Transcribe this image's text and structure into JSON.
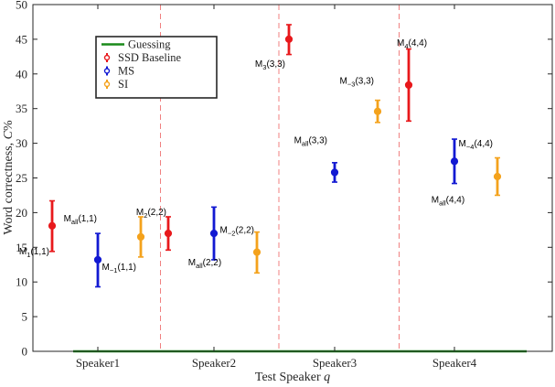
{
  "chart_data": {
    "type": "scatter",
    "categories": [
      "Speaker1",
      "Speaker2",
      "Speaker3",
      "Speaker4"
    ],
    "xlabel": "Test Speaker",
    "xlabel_var": "q",
    "ylabel": "Word correctness, ",
    "ylabel_var": "C",
    "ylabel_unit": "%",
    "ylim": [
      0,
      50
    ],
    "yticks": [
      0,
      5,
      10,
      15,
      20,
      25,
      30,
      35,
      40,
      45,
      50
    ],
    "grid": false,
    "legend_position": "top-left",
    "series": [
      {
        "name": "Guessing",
        "kind": "line",
        "color": "#1a8a1a",
        "value": 0
      },
      {
        "name": "SSD Baseline",
        "kind": "errorbar",
        "color": "#e8191c",
        "points": [
          {
            "category": "Speaker1",
            "y": 18.1,
            "low": 14.4,
            "high": 21.7,
            "label": "M",
            "sub": "1",
            "suffix": "(1,1)"
          },
          {
            "category": "Speaker2",
            "y": 17.0,
            "low": 14.6,
            "high": 19.4,
            "label": "M",
            "sub": "2",
            "suffix": "(2,2)"
          },
          {
            "category": "Speaker3",
            "y": 45.0,
            "low": 42.8,
            "high": 47.1,
            "label": "M",
            "sub": "3",
            "suffix": "(3,3)"
          },
          {
            "category": "Speaker4",
            "y": 38.4,
            "low": 33.2,
            "high": 43.6,
            "label": "M",
            "sub": "4",
            "suffix": "(4,4)"
          }
        ]
      },
      {
        "name": "MS",
        "kind": "errorbar",
        "color": "#1219d2",
        "points": [
          {
            "category": "Speaker1",
            "y": 13.2,
            "low": 9.3,
            "high": 17.0,
            "label": "M",
            "sub": "all",
            "suffix": "(1,1)"
          },
          {
            "category": "Speaker2",
            "y": 17.0,
            "low": 13.2,
            "high": 20.8,
            "label": "M",
            "sub": "all",
            "suffix": "(2,2)"
          },
          {
            "category": "Speaker3",
            "y": 25.8,
            "low": 24.4,
            "high": 27.2,
            "label": "M",
            "sub": "all",
            "suffix": "(3,3)"
          },
          {
            "category": "Speaker4",
            "y": 27.4,
            "low": 24.2,
            "high": 30.6,
            "label": "M",
            "sub": "all",
            "suffix": "(4,4)"
          }
        ]
      },
      {
        "name": "SI",
        "kind": "errorbar",
        "color": "#f4a21c",
        "points": [
          {
            "category": "Speaker1",
            "y": 16.5,
            "low": 13.6,
            "high": 19.4,
            "label": "M",
            "sub": "−1",
            "suffix": "(1,1)"
          },
          {
            "category": "Speaker2",
            "y": 14.3,
            "low": 11.3,
            "high": 17.2,
            "label": "M",
            "sub": "−2",
            "suffix": "(2,2)"
          },
          {
            "category": "Speaker3",
            "y": 34.6,
            "low": 33.0,
            "high": 36.2,
            "label": "M",
            "sub": "−3",
            "suffix": "(3,3)"
          },
          {
            "category": "Speaker4",
            "y": 25.2,
            "low": 22.5,
            "high": 27.9,
            "label": "M",
            "sub": "−4",
            "suffix": "(4,4)"
          }
        ]
      }
    ],
    "separators_between_categories": true,
    "separator_color": "#f08080"
  }
}
